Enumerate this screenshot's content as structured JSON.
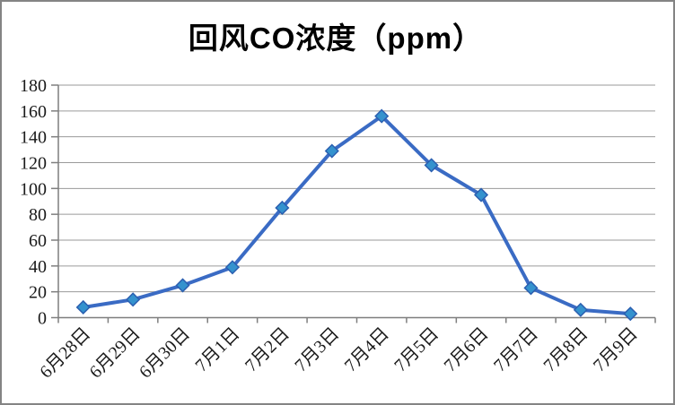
{
  "title": "回风CO浓度（ppm）",
  "chart_data": {
    "type": "line",
    "title": "回风CO浓度（ppm）",
    "categories": [
      "6月28日",
      "6月29日",
      "6月30日",
      "7月1日",
      "7月2日",
      "7月3日",
      "7月4日",
      "7月5日",
      "7月6日",
      "7月7日",
      "7月8日",
      "7月9日"
    ],
    "values": [
      8,
      14,
      25,
      39,
      85,
      129,
      156,
      118,
      95,
      23,
      6,
      3
    ],
    "xlabel": "",
    "ylabel": "",
    "ylim": [
      0,
      180
    ],
    "y_tick_interval": 20,
    "y_tick_labels": [
      "0",
      "20",
      "40",
      "60",
      "80",
      "100",
      "120",
      "140",
      "160",
      "180"
    ],
    "grid": "horizontal",
    "legend": "none",
    "marker": "diamond",
    "colors": {
      "line": "#3a6bc4",
      "marker_fill": "#3492ce",
      "marker_stroke": "#2b5fb0",
      "gridline": "#9a9a9a",
      "axis": "#7f7f7f",
      "text": "#1a1a1a",
      "frame_border": "#848484"
    }
  }
}
